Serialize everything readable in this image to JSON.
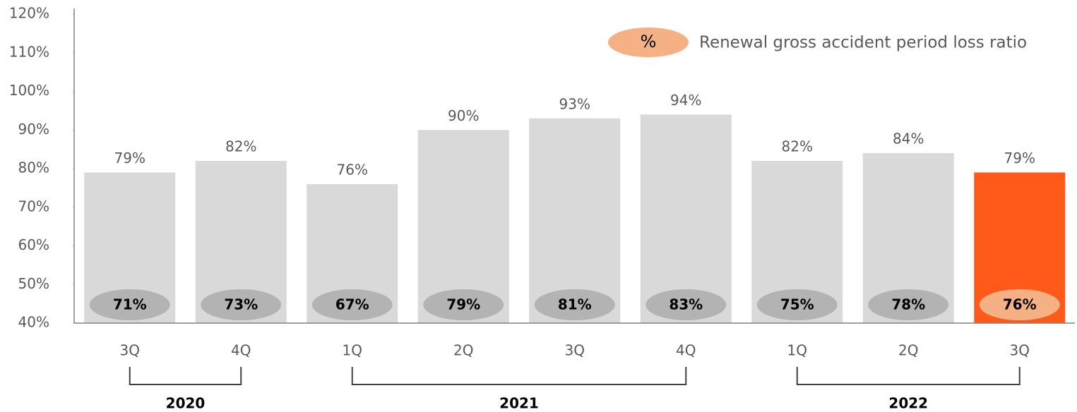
{
  "chart_data": {
    "type": "bar",
    "categories": [
      "3Q",
      "4Q",
      "1Q",
      "2Q",
      "3Q",
      "4Q",
      "1Q",
      "2Q",
      "3Q"
    ],
    "groups": [
      {
        "label": "2020",
        "count": 2
      },
      {
        "label": "2021",
        "count": 4
      },
      {
        "label": "2022",
        "count": 3
      }
    ],
    "series": [
      {
        "values": [
          79,
          82,
          76,
          90,
          93,
          94,
          82,
          84,
          79
        ],
        "value_labels": [
          "79%",
          "82%",
          "76%",
          "90%",
          "93%",
          "94%",
          "82%",
          "84%",
          "79%"
        ],
        "colors": [
          "#d9d9d9",
          "#d9d9d9",
          "#d9d9d9",
          "#d9d9d9",
          "#d9d9d9",
          "#d9d9d9",
          "#d9d9d9",
          "#d9d9d9",
          "#ff5a1a"
        ]
      },
      {
        "name": "Renewal gross accident period loss ratio",
        "values": [
          71,
          73,
          67,
          79,
          81,
          83,
          75,
          78,
          76
        ],
        "value_labels": [
          "71%",
          "73%",
          "67%",
          "79%",
          "81%",
          "83%",
          "75%",
          "78%",
          "76%"
        ],
        "colors": [
          "#b3b3b3",
          "#b3b3b3",
          "#b3b3b3",
          "#b3b3b3",
          "#b3b3b3",
          "#b3b3b3",
          "#b3b3b3",
          "#b3b3b3",
          "#f5b183"
        ]
      }
    ],
    "legend_symbol": "%",
    "legend_color": "#f5b183",
    "ylim": [
      40,
      120
    ],
    "yticks": [
      {
        "value": 40,
        "label": "40%"
      },
      {
        "value": 50,
        "label": "50%"
      },
      {
        "value": 60,
        "label": "60%"
      },
      {
        "value": 70,
        "label": "70%"
      },
      {
        "value": 80,
        "label": "80%"
      },
      {
        "value": 90,
        "label": "90%"
      },
      {
        "value": 100,
        "label": "100%"
      },
      {
        "value": 110,
        "label": "110%"
      },
      {
        "value": 120,
        "label": "120%"
      }
    ]
  }
}
